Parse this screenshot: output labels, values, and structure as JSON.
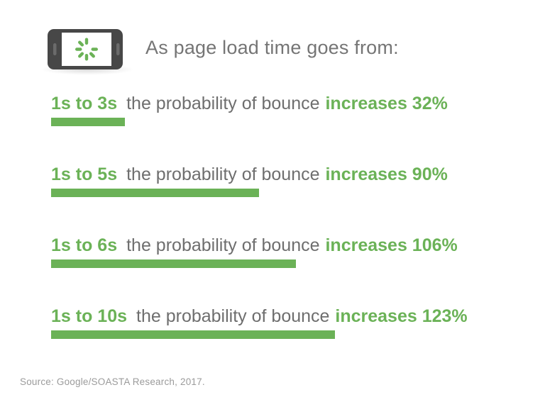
{
  "header": {
    "title": "As page load time goes from:",
    "phone_icon": "phone-landscape-icon",
    "spinner_icon": "loading-spinner-icon"
  },
  "rows": [
    {
      "range_label": "1s to 3s",
      "description": "the probability of bounce",
      "emphasis": "increases 32%",
      "value": 32
    },
    {
      "range_label": "1s to 5s",
      "description": "the probability of bounce",
      "emphasis": "increases 90%",
      "value": 90
    },
    {
      "range_label": "1s to 6s",
      "description": "the probability of bounce",
      "emphasis": "increases 106%",
      "value": 106
    },
    {
      "range_label": "1s to 10s",
      "description": "the probability of bounce",
      "emphasis": "increases 123%",
      "value": 123
    }
  ],
  "footer": {
    "source": "Source: Google/SOASTA Research, 2017."
  },
  "colors": {
    "green": "#6bb257",
    "row_text_gray": "#6e6e6e",
    "header_gray": "#757575",
    "source_gray": "#9b9b9b",
    "phone_body_dark": "#474747",
    "background": "#ffffff"
  },
  "chart_data": {
    "type": "bar",
    "orientation": "horizontal",
    "title": "As page load time goes from:",
    "categories": [
      "1s to 3s",
      "1s to 5s",
      "1s to 6s",
      "1s to 10s"
    ],
    "values": [
      32,
      90,
      106,
      123
    ],
    "value_unit": "%",
    "annotation_template": "the probability of bounce increases {value}%",
    "xlabel": "",
    "ylabel": "",
    "axes_shown": false,
    "grid": false,
    "legend": "none",
    "bar_color": "#6bb257",
    "source": "Source: Google/SOASTA Research, 2017."
  }
}
